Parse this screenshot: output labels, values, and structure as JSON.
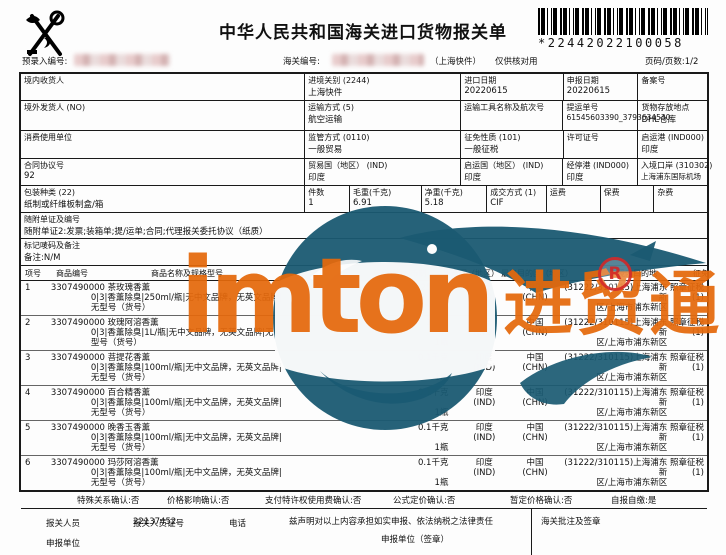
{
  "page": {
    "title": "中华人民共和国海关进口货物报关单",
    "barcode_text": "*22442022100058",
    "pre_entry_label": "预录入编号:",
    "customs_no_label": "海关编号:",
    "channel_note": "（上海快件）",
    "check_note": "仅供核对用",
    "page_info": "页码/页数:1/2"
  },
  "info": {
    "consignee_label": "境内收货人",
    "entry_custom_label": "进境关别",
    "entry_custom_code": "(2244)",
    "entry_custom": "上海快件",
    "import_date_label": "进口日期",
    "import_date": "20220615",
    "declare_date_label": "申报日期",
    "declare_date": "20220615",
    "record_no_label": "备案号",
    "shipper_label": "境外发货人",
    "shipper_code": "(NO)",
    "transport_mode_label": "运输方式",
    "transport_mode_code": "(5)",
    "transport_mode": "航空运输",
    "transport_tool_label": "运输工具名称及航次号",
    "bill_no_label": "提运单号",
    "bill_no": "61545603390_3793634530",
    "storage_label": "货物存放地点",
    "storage": "DHL仓库",
    "consumer_label": "消费使用单位",
    "supervision_label": "监管方式",
    "supervision_code": "(0110)",
    "supervision": "一般贸易",
    "levy_label": "征免性质",
    "levy_code": "(101)",
    "levy": "一般征税",
    "license_label": "许可证号",
    "depart_port_label": "启运港",
    "depart_port_code": "(IND000)",
    "depart_port": "印度",
    "contract_label": "合同协议号",
    "contract_no": "92",
    "trade_country_label": "贸易国（地区）",
    "trade_country_code": "(IND)",
    "trade_country": "印度",
    "depart_country_label": "启运国（地区）",
    "depart_country_code": "(IND)",
    "depart_country": "印度",
    "transit_port_label": "经停港",
    "transit_port_code": "(IND000)",
    "transit_port": "印度",
    "entry_point_label": "入境口岸",
    "entry_point_code": "(310302)",
    "entry_point": "上海浦东国际机场",
    "packing_label": "包装种类",
    "packing_code": "(22)",
    "packing": "纸制或纤维板制盒/箱",
    "pieces_label": "件数",
    "pieces": "1",
    "gross_label": "毛重(千克)",
    "gross": "6.91",
    "net_label": "净重(千克)",
    "net": "5.18",
    "deal_label": "成交方式",
    "deal_code": "(1)",
    "deal": "CIF",
    "freight_label": "运费",
    "insurance_label": "保费",
    "misc_label": "杂费",
    "docs_label": "随附单证及编号",
    "docs_value": "随附单证2:发票;装箱单;提/运单;合同;代理报关委托协议（纸质）",
    "marks_label": "标记唛码及备注",
    "marks_value": "备注:N/M"
  },
  "goods": {
    "headers": {
      "no": "项号",
      "code": "商品编号",
      "name_spec": "商品名称及规格型号",
      "qty_unit": "数量及单位",
      "price": "单价/总价/币制",
      "origin": "原产国（地区）",
      "final_dest": "最终目的国（地区）",
      "domestic_dest": "境内目的地",
      "exempt": "征免"
    },
    "items": [
      {
        "no": "1",
        "hs_code": "3307490000",
        "name": "茶玫瑰香薰",
        "spec1": "0|3|香薰除臭|250ml/瓶|无中文品牌，无英文品牌|",
        "spec2": "无型号（货号）",
        "qty1": "0.25千克",
        "qty2": "1瓶",
        "origin": "印度",
        "origin_code": "(IND)",
        "dest": "中国",
        "dest_code": "(CHN)",
        "dom1": "(31222/310115)上海浦东新",
        "dom2": "区/上海市浦东新区",
        "exempt": "照章征税",
        "exempt_code": "(1)"
      },
      {
        "no": "2",
        "hs_code": "3307490000",
        "name": "玫瑰阿溶香薰",
        "spec1": "0|3|香薰除臭|1L/瓶|无中文品牌，无英文品牌|无",
        "spec2": "型号（货号）",
        "qty1": "1千克",
        "qty2": "1瓶",
        "origin": "印度",
        "origin_code": "(IND)",
        "dest": "中国",
        "dest_code": "(CHN)",
        "dom1": "(31222/310115)上海浦东新",
        "dom2": "区/上海市浦东新区",
        "exempt": "照章征税",
        "exempt_code": "(1)"
      },
      {
        "no": "3",
        "hs_code": "3307490000",
        "name": "菩提花香薰",
        "spec1": "0|3|香薰除臭|100ml/瓶|无中文品牌，无英文品牌|",
        "spec2": "无型号（货号）",
        "qty1": "0.1千克",
        "qty2": "1瓶",
        "origin": "印度",
        "origin_code": "(IND)",
        "dest": "中国",
        "dest_code": "(CHN)",
        "dom1": "(31222/310115)上海浦东新",
        "dom2": "区/上海市浦东新区",
        "exempt": "照章征税",
        "exempt_code": "(1)"
      },
      {
        "no": "4",
        "hs_code": "3307490000",
        "name": "百合精香薰",
        "spec1": "0|3|香薰除臭|100ml/瓶|无中文品牌，无英文品牌|",
        "spec2": "无型号（货号）",
        "qty1": "0.1千克",
        "qty2": "1瓶",
        "origin": "印度",
        "origin_code": "(IND)",
        "dest": "中国",
        "dest_code": "(CHN)",
        "dom1": "(31222/310115)上海浦东新",
        "dom2": "区/上海市浦东新区",
        "exempt": "照章征税",
        "exempt_code": "(1)"
      },
      {
        "no": "5",
        "hs_code": "3307490000",
        "name": "晚香玉香薰",
        "spec1": "0|3|香薰除臭|100ml/瓶|无中文品牌，无英文品牌|",
        "spec2": "无型号（货号）",
        "qty1": "0.1千克",
        "qty2": "1瓶",
        "origin": "印度",
        "origin_code": "(IND)",
        "dest": "中国",
        "dest_code": "(CHN)",
        "dom1": "(31222/310115)上海浦东新",
        "dom2": "区/上海市浦东新区",
        "exempt": "照章征税",
        "exempt_code": "(1)"
      },
      {
        "no": "6",
        "hs_code": "3307490000",
        "name": "玛莎阿溶香薰",
        "spec1": "0|3|香薰除臭|100ml/瓶|无中文品牌，无英文品牌|",
        "spec2": "无型号（货号）",
        "qty1": "0.1千克",
        "qty2": "1瓶",
        "origin": "印度",
        "origin_code": "(IND)",
        "dest": "中国",
        "dest_code": "(CHN)",
        "dom1": "(31222/310115)上海浦东新",
        "dom2": "区/上海市浦东新区",
        "exempt": "照章征税",
        "exempt_code": "(1)"
      }
    ]
  },
  "confirm": {
    "items": [
      {
        "text": "特殊关系确认:否"
      },
      {
        "text": "价格影响确认:否"
      },
      {
        "text": "支付特许权使用费确认:否"
      },
      {
        "text": "公式定价确认:否"
      },
      {
        "text": "暂定价格确认:否"
      },
      {
        "text": "自报自缴:是"
      }
    ]
  },
  "footer": {
    "agent_label": "报关人员",
    "agent_cert_label": "报关人员证号",
    "agent_cert_no": "22137452",
    "phone_label": "电话",
    "declaration": "兹声明对以上内容承担如实申报、依法纳税之法律责任",
    "declare_unit_seal": "申报单位（签章）",
    "customs_note_label": "海关批注及签章",
    "declare_unit_label": "申报单位"
  },
  "watermark": {
    "latin": "imton",
    "cn": "进贸通",
    "reg": "R",
    "teal": "#1a5a72",
    "orange": "#e5690c",
    "red": "#d42a2a"
  }
}
